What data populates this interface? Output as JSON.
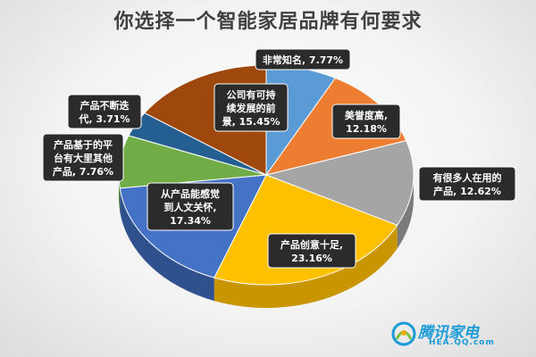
{
  "chart_data": {
    "type": "pie",
    "title": "你选择一个智能家居品牌有何要求",
    "slices": [
      {
        "label": "非常知名, 7.77%",
        "value": 7.77,
        "color": "#5b9bd5",
        "side": "#3f74a6"
      },
      {
        "label": "美誉度高, 12.18%",
        "value": 12.18,
        "color": "#ed7d31",
        "side": "#b85c1f"
      },
      {
        "label": "有很多人在用的产品, 12.62%",
        "value": 12.62,
        "color": "#a5a5a5",
        "side": "#7a7a7a"
      },
      {
        "label": "产品创意十足, 23.16%",
        "value": 23.16,
        "color": "#ffc000",
        "side": "#c99500"
      },
      {
        "label": "从产品能感觉到人文关怀, 17.34%",
        "value": 17.34,
        "color": "#4472c4",
        "side": "#2f528f"
      },
      {
        "label": "产品基于的平台有大里其他产品, 7.76%",
        "value": 7.76,
        "color": "#70ad47",
        "side": "#4e7f30"
      },
      {
        "label": "产品不断迭代, 3.71%",
        "value": 3.71,
        "color": "#255e91",
        "side": "#173e61"
      },
      {
        "label": "公司有可持续发展的前景, 15.45%",
        "value": 15.45,
        "color": "#9e480e",
        "side": "#6b3009"
      }
    ],
    "callouts": [
      {
        "lines": [
          "非常知名, 7.77%"
        ]
      },
      {
        "lines": [
          "美誉度高,",
          "12.18%"
        ]
      },
      {
        "lines": [
          "有很多人在用的",
          "产品, 12.62%"
        ]
      },
      {
        "lines": [
          "产品创意十足,",
          "23.16%"
        ]
      },
      {
        "lines": [
          "从产品能感觉",
          "到人文关怀,",
          "17.34%"
        ]
      },
      {
        "lines": [
          "产品基于的平",
          "台有大里其他",
          "产品, 7.76%"
        ]
      },
      {
        "lines": [
          "产品不断迭",
          "代, 3.71%"
        ]
      },
      {
        "lines": [
          "公司有可持",
          "续发展的前",
          "景, 15.45%"
        ]
      }
    ]
  },
  "watermark": {
    "brand": "腾讯家电",
    "sub": "HEA.QQ.com"
  }
}
